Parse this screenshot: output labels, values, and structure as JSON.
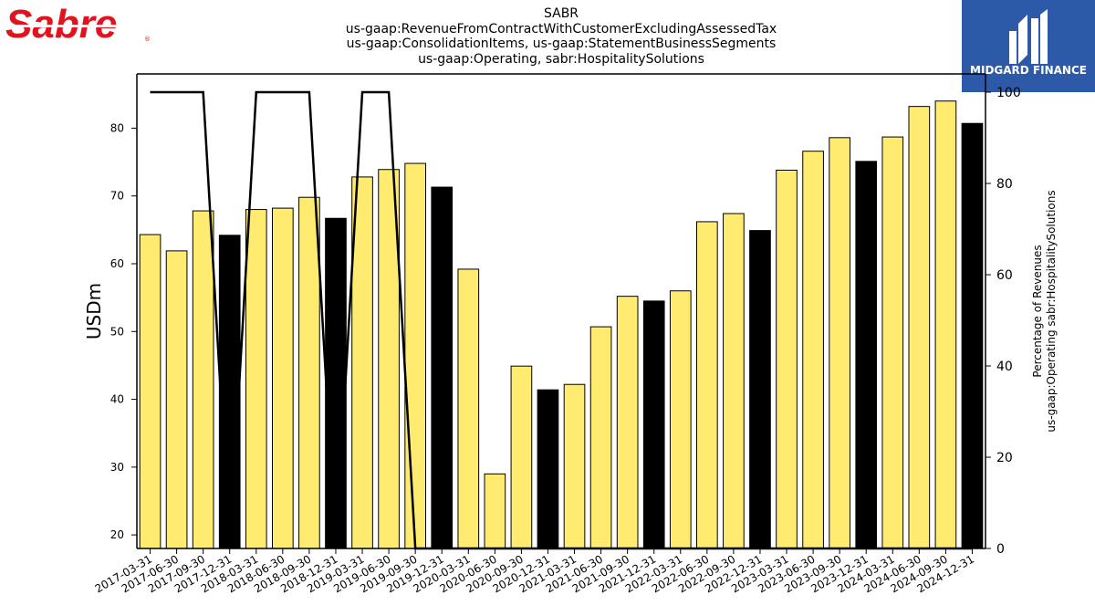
{
  "brand": {
    "logo_text": "Sabre",
    "partner_text": "MIDGARD FINANCE",
    "colors": {
      "sabre_red": "#e0141e",
      "partner_blue": "#2c5aa8"
    }
  },
  "chart_data": {
    "type": "bar",
    "title_lines": [
      "SABR",
      "us-gaap:RevenueFromContractWithCustomerExcludingAssessedTax",
      "us-gaap:ConsolidationItems, us-gaap:StatementBusinessSegments",
      "us-gaap:Operating, sabr:HospitalitySolutions"
    ],
    "ylabel": "USDm",
    "y2label_lines": [
      "Percentage of Revenues",
      "us-gaap:Operating sabr:HospitalitySolutions"
    ],
    "ylim": [
      18,
      88
    ],
    "yticks": [
      20,
      30,
      40,
      50,
      60,
      70,
      80
    ],
    "y2lim": [
      0,
      104
    ],
    "y2ticks": [
      0,
      20,
      40,
      60,
      80,
      100
    ],
    "grid": false,
    "colors": {
      "quarter_bar": "#ffeb70",
      "year_end_bar": "#000000",
      "edge": "#000000",
      "line": "#000000"
    },
    "categories": [
      "2017-03-31",
      "2017-06-30",
      "2017-09-30",
      "2017-12-31",
      "2018-03-31",
      "2018-06-30",
      "2018-09-30",
      "2018-12-31",
      "2019-03-31",
      "2019-06-30",
      "2019-09-30",
      "2019-12-31",
      "2020-03-31",
      "2020-06-30",
      "2020-09-30",
      "2020-12-31",
      "2021-03-31",
      "2021-06-30",
      "2021-09-30",
      "2021-12-31",
      "2022-03-31",
      "2022-06-30",
      "2022-09-30",
      "2022-12-31",
      "2023-03-31",
      "2023-06-30",
      "2023-09-30",
      "2023-12-31",
      "2024-03-31",
      "2024-06-30",
      "2024-09-30",
      "2024-12-31"
    ],
    "series": [
      {
        "values": [
          64.3,
          61.9,
          67.8,
          64.2,
          68.0,
          68.2,
          69.8,
          66.7,
          72.8,
          73.9,
          74.8,
          71.3,
          59.2,
          29.0,
          44.9,
          41.4,
          42.2,
          50.7,
          55.2,
          54.5,
          56.0,
          66.2,
          67.4,
          64.9,
          73.8,
          76.6,
          78.6,
          75.1,
          78.7,
          83.2,
          84.0,
          80.7
        ],
        "highlight": [
          false,
          false,
          false,
          true,
          false,
          false,
          false,
          true,
          false,
          false,
          false,
          true,
          false,
          false,
          false,
          true,
          false,
          false,
          false,
          true,
          false,
          false,
          false,
          true,
          false,
          false,
          false,
          true,
          false,
          false,
          false,
          true
        ]
      },
      {
        "type": "line",
        "axis": "right",
        "values": [
          100,
          100,
          100,
          0,
          100,
          100,
          100,
          0,
          100,
          100,
          0,
          0,
          0,
          0,
          0,
          0,
          0,
          0,
          0,
          0,
          0,
          0,
          0,
          0,
          0,
          0,
          0,
          0,
          0,
          0,
          0,
          0
        ]
      }
    ]
  }
}
